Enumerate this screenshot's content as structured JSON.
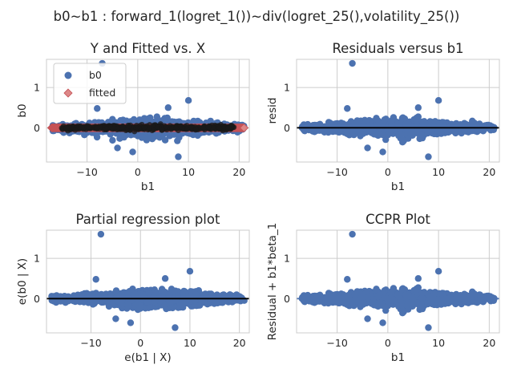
{
  "figure": {
    "suptitle": "b0~b1 : forward_1(logret_1())~div(logret_25(),volatility_25())"
  },
  "colors": {
    "points": "#4c72b0",
    "fitted": "#dd8888",
    "fitted_edge": "#c44e52",
    "fit_line": "#000000",
    "ccpr_line": "#4c72b0",
    "grid": "#cccccc"
  },
  "chart_data": [
    {
      "type": "scatter",
      "title": "Y and Fitted vs. X",
      "xlabel": "b1",
      "ylabel": "b0",
      "xlim": [
        -18,
        22
      ],
      "ylim": [
        -0.85,
        1.7
      ],
      "xticks": [
        -10,
        0,
        10,
        20
      ],
      "yticks": [
        0,
        1
      ],
      "grid": true,
      "legend": {
        "placement": "top-left",
        "entries": [
          "b0",
          "fitted"
        ]
      },
      "series": [
        {
          "name": "b0",
          "marker": "circle",
          "x_range": [
            -17,
            21
          ],
          "y_spread": 0.25,
          "outliers": [
            [
              -7,
              1.6
            ],
            [
              10,
              0.68
            ],
            [
              -8,
              0.48
            ],
            [
              6,
              0.5
            ],
            [
              -4,
              -0.5
            ],
            [
              -1,
              -0.6
            ],
            [
              8,
              -0.72
            ]
          ]
        },
        {
          "name": "fitted",
          "marker": "diamond",
          "x_range": [
            -17,
            21
          ],
          "y": 0.0
        }
      ]
    },
    {
      "type": "scatter",
      "title": "Residuals versus b1",
      "xlabel": "b1",
      "ylabel": "resid",
      "xlim": [
        -18,
        22
      ],
      "ylim": [
        -0.85,
        1.7
      ],
      "xticks": [
        -10,
        0,
        10,
        20
      ],
      "yticks": [
        0,
        1
      ],
      "grid": true,
      "hline": 0,
      "series": [
        {
          "marker": "circle",
          "x_range": [
            -17,
            21
          ],
          "y_spread": 0.25,
          "outliers": [
            [
              -7,
              1.6
            ],
            [
              10,
              0.68
            ],
            [
              -8,
              0.48
            ],
            [
              6,
              0.5
            ],
            [
              -4,
              -0.5
            ],
            [
              -1,
              -0.6
            ],
            [
              8,
              -0.72
            ]
          ]
        }
      ]
    },
    {
      "type": "scatter",
      "title": "Partial regression plot",
      "xlabel": "e(b1 | X)",
      "ylabel": "e(b0 | X)",
      "xlim": [
        -19,
        22
      ],
      "ylim": [
        -0.85,
        1.7
      ],
      "xticks": [
        -10,
        0,
        10,
        20
      ],
      "yticks": [
        0,
        1
      ],
      "grid": true,
      "hline": 0,
      "series": [
        {
          "marker": "circle",
          "x_range": [
            -18,
            21
          ],
          "y_spread": 0.25,
          "outliers": [
            [
              -8,
              1.6
            ],
            [
              10,
              0.68
            ],
            [
              -9,
              0.48
            ],
            [
              5,
              0.5
            ],
            [
              -5,
              -0.5
            ],
            [
              -2,
              -0.6
            ],
            [
              7,
              -0.72
            ]
          ]
        }
      ]
    },
    {
      "type": "scatter",
      "title": "CCPR Plot",
      "xlabel": "b1",
      "ylabel": "Residual + b1*beta_1",
      "xlim": [
        -18,
        22
      ],
      "ylim": [
        -0.85,
        1.7
      ],
      "xticks": [
        -10,
        0,
        10,
        20
      ],
      "yticks": [
        0,
        1
      ],
      "grid": true,
      "hline": 0,
      "series": [
        {
          "marker": "circle",
          "x_range": [
            -17,
            21
          ],
          "y_spread": 0.25,
          "outliers": [
            [
              -7,
              1.6
            ],
            [
              10,
              0.68
            ],
            [
              -8,
              0.48
            ],
            [
              6,
              0.5
            ],
            [
              -4,
              -0.5
            ],
            [
              -1,
              -0.6
            ],
            [
              8,
              -0.72
            ]
          ]
        }
      ]
    }
  ]
}
